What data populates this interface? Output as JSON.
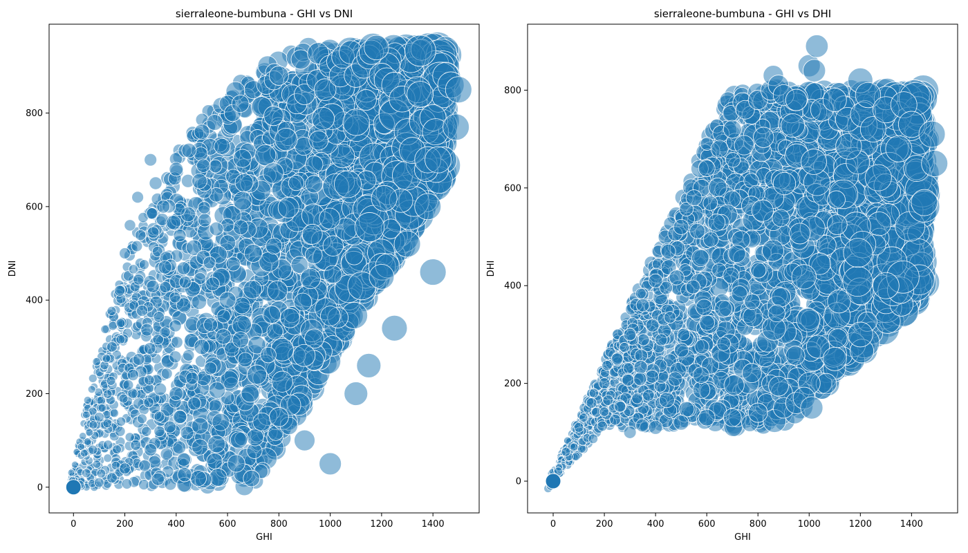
{
  "chart_data": [
    {
      "type": "scatter",
      "title": "sierraleone-bumbuna - GHI vs DNI",
      "xlabel": "GHI",
      "ylabel": "DNI",
      "xlim": [
        -95,
        1580
      ],
      "ylim": [
        -55,
        990
      ],
      "xticks": [
        0,
        200,
        400,
        600,
        800,
        1000,
        1200,
        1400
      ],
      "yticks": [
        0,
        200,
        400,
        600,
        800
      ],
      "grid": false,
      "marker_color": "#1f77b4",
      "marker_alpha": 0.5,
      "series": [
        {
          "x": [
            0,
            10,
            25,
            50,
            75,
            100,
            150,
            180,
            200,
            220,
            250,
            300,
            320,
            350,
            400,
            450,
            500,
            550,
            600,
            620,
            650,
            700,
            750,
            780,
            800,
            850,
            870,
            900,
            950,
            980,
            1000,
            1030,
            1040,
            1050,
            1080,
            1100,
            1130,
            1150,
            1160,
            1180,
            1200,
            1220,
            1250,
            1280,
            1300,
            1320,
            1340,
            1350,
            1360,
            1380,
            1400,
            1410,
            1420,
            1450,
            1470,
            1490,
            1500,
            100,
            150,
            200,
            300,
            400,
            500,
            600,
            700,
            800,
            900,
            1000,
            1100,
            1200,
            1300,
            1400,
            1380,
            1150,
            1250
          ],
          "y": [
            0,
            2,
            5,
            30,
            80,
            150,
            300,
            420,
            500,
            560,
            620,
            700,
            650,
            600,
            680,
            720,
            760,
            780,
            820,
            800,
            820,
            850,
            860,
            870,
            880,
            840,
            820,
            840,
            870,
            850,
            900,
            910,
            880,
            920,
            930,
            880,
            900,
            920,
            930,
            940,
            880,
            870,
            860,
            830,
            760,
            720,
            850,
            840,
            780,
            700,
            790,
            760,
            700,
            880,
            860,
            770,
            850,
            10,
            20,
            40,
            80,
            200,
            300,
            400,
            500,
            150,
            100,
            50,
            200,
            450,
            520,
            460,
            600,
            260,
            340
          ]
        }
      ]
    },
    {
      "type": "scatter",
      "title": "sierraleone-bumbuna - GHI vs DHI",
      "xlabel": "GHI",
      "ylabel": "DHI",
      "xlim": [
        -100,
        1580
      ],
      "ylim": [
        -65,
        935
      ],
      "xticks": [
        0,
        200,
        400,
        600,
        800,
        1000,
        1200,
        1400
      ],
      "yticks": [
        0,
        200,
        400,
        600,
        800
      ],
      "grid": false,
      "marker_color": "#1f77b4",
      "marker_alpha": 0.5,
      "series": [
        {
          "x": [
            -20,
            -10,
            0,
            20,
            50,
            100,
            150,
            200,
            250,
            300,
            350,
            400,
            450,
            500,
            550,
            600,
            650,
            700,
            750,
            800,
            850,
            860,
            880,
            900,
            950,
            1000,
            1020,
            1030,
            1050,
            1100,
            1150,
            1200,
            1210,
            1230,
            1250,
            1300,
            1350,
            1370,
            1400,
            1420,
            1450,
            1480,
            1490,
            600,
            700,
            800,
            900,
            1000,
            1100,
            1200,
            1300,
            500,
            400,
            300,
            950,
            980,
            1010
          ],
          "y": [
            -15,
            -10,
            0,
            20,
            60,
            110,
            160,
            200,
            250,
            300,
            360,
            410,
            470,
            520,
            580,
            640,
            680,
            720,
            760,
            780,
            800,
            830,
            810,
            790,
            780,
            850,
            840,
            890,
            760,
            780,
            740,
            820,
            750,
            790,
            720,
            760,
            680,
            770,
            730,
            640,
            570,
            710,
            650,
            130,
            130,
            140,
            150,
            200,
            250,
            300,
            400,
            120,
            110,
            100,
            160,
            170,
            150
          ]
        }
      ]
    }
  ]
}
